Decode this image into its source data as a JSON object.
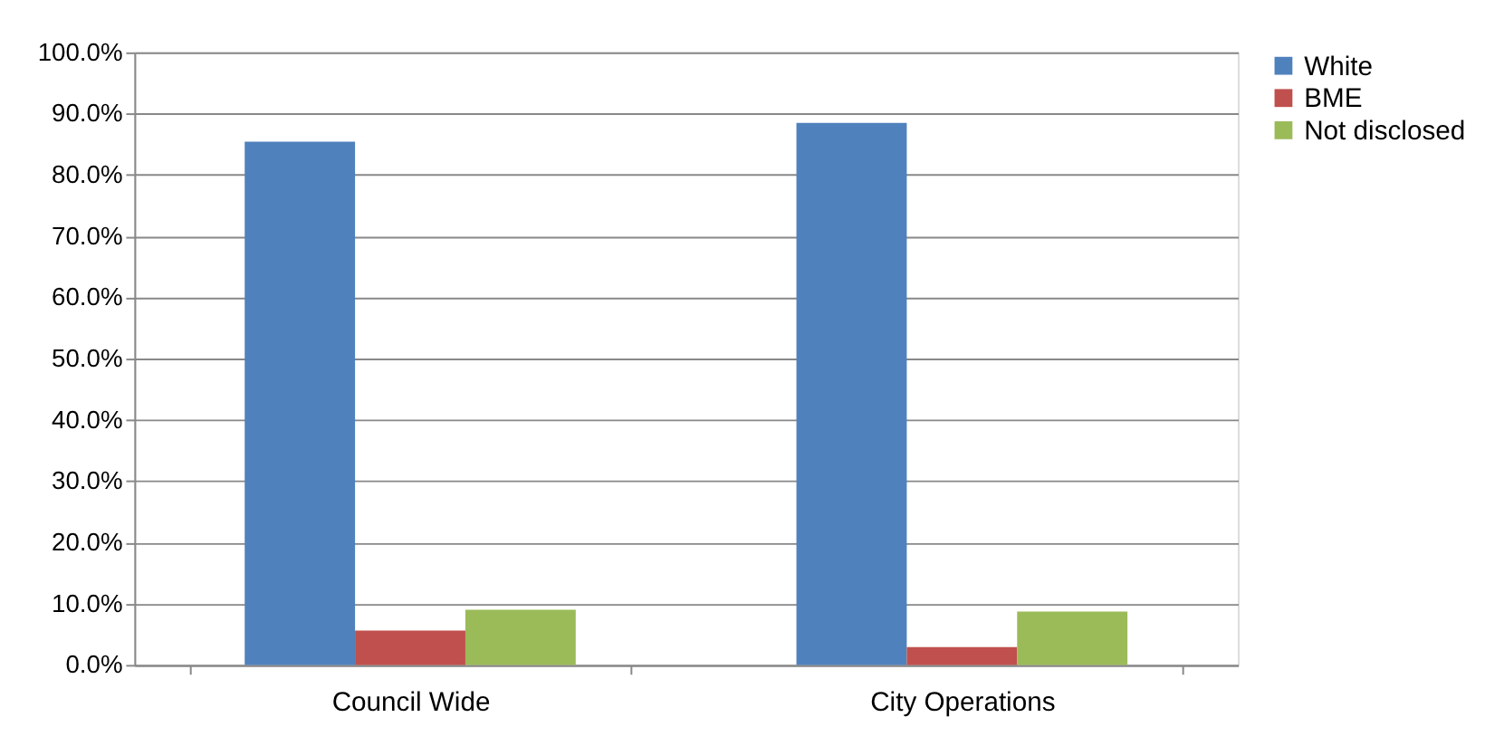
{
  "chart_data": {
    "type": "bar",
    "categories": [
      "Council Wide",
      "City Operations"
    ],
    "series": [
      {
        "name": "White",
        "color": "#4f81bd",
        "values": [
          85.4,
          88.5
        ]
      },
      {
        "name": "BME",
        "color": "#c0504d",
        "values": [
          5.6,
          2.9
        ]
      },
      {
        "name": "Not disclosed",
        "color": "#9bbb59",
        "values": [
          9.0,
          8.7
        ]
      }
    ],
    "ylim": [
      0,
      100
    ],
    "yticks": [
      {
        "value": 0,
        "label": "0.0%"
      },
      {
        "value": 10,
        "label": "10.0%"
      },
      {
        "value": 20,
        "label": "20.0%"
      },
      {
        "value": 30,
        "label": "30.0%"
      },
      {
        "value": 40,
        "label": "40.0%"
      },
      {
        "value": 50,
        "label": "50.0%"
      },
      {
        "value": 60,
        "label": "60.0%"
      },
      {
        "value": 70,
        "label": "70.0%"
      },
      {
        "value": 80,
        "label": "80.0%"
      },
      {
        "value": 90,
        "label": "90.0%"
      },
      {
        "value": 100,
        "label": "100.0%"
      }
    ],
    "grid": "y",
    "legend": "right"
  }
}
